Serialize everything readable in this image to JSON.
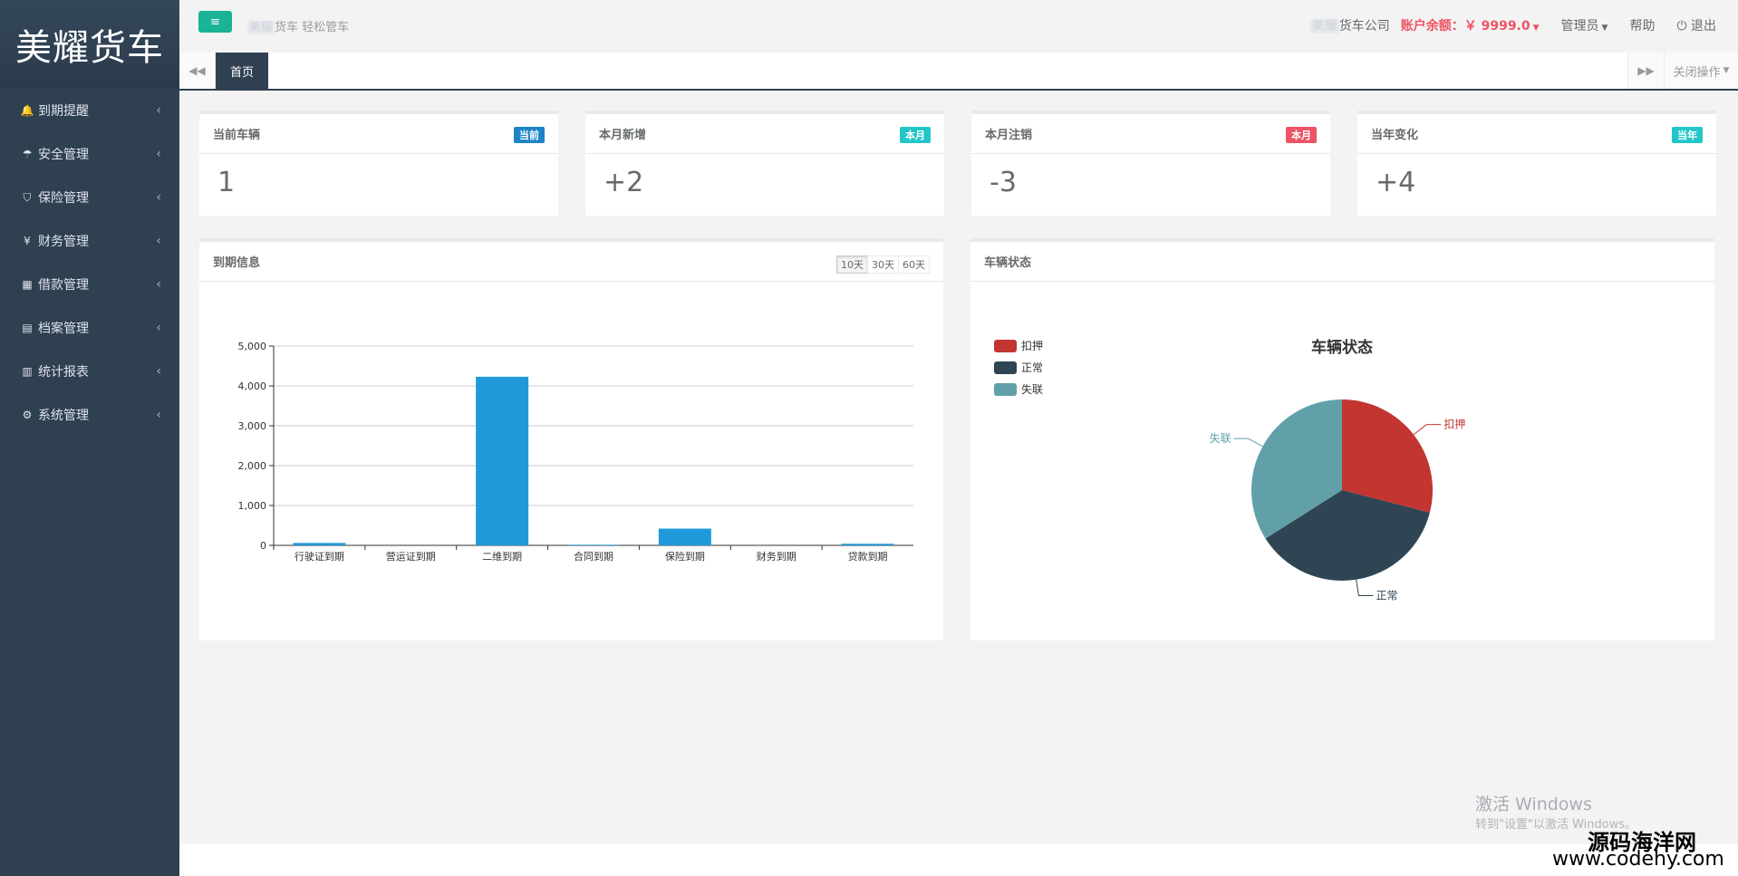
{
  "sidebar": {
    "logo": "美耀货车",
    "items": [
      {
        "icon": "bell-icon",
        "glyph": "🔔",
        "label": "到期提醒"
      },
      {
        "icon": "umbrella-icon",
        "glyph": "☂",
        "label": "安全管理"
      },
      {
        "icon": "shield-icon",
        "glyph": "⛉",
        "label": "保险管理"
      },
      {
        "icon": "yen-icon",
        "glyph": "¥",
        "label": "财务管理"
      },
      {
        "icon": "calculator-icon",
        "glyph": "▦",
        "label": "借款管理"
      },
      {
        "icon": "document-icon",
        "glyph": "▤",
        "label": "档案管理"
      },
      {
        "icon": "bar-chart-icon",
        "glyph": "▥",
        "label": "统计报表"
      },
      {
        "icon": "gear-icon",
        "glyph": "⚙",
        "label": "系统管理"
      }
    ],
    "arrow": "‹"
  },
  "header": {
    "menu_glyph": "≡",
    "slogan_blur": "美耀",
    "slogan": "货车 轻松管车",
    "company_blur": "美耀",
    "company": "货车公司",
    "balance": "账户余额：￥ 9999.0",
    "admin": "管理员",
    "help": "帮助",
    "logout_glyph": "⏻",
    "logout": "退出"
  },
  "tabs": {
    "prev_glyph": "◀◀",
    "next_glyph": "▶▶",
    "home": "首页",
    "close_ops": "关闭操作"
  },
  "stats": [
    {
      "title": "当前车辆",
      "badge": "当前",
      "badge_color": "#1c84c6",
      "value": "1"
    },
    {
      "title": "本月新增",
      "badge": "本月",
      "badge_color": "#23c6c8",
      "value": "+2"
    },
    {
      "title": "本月注销",
      "badge": "本月",
      "badge_color": "#ed5565",
      "value": "-3"
    },
    {
      "title": "当年变化",
      "badge": "当年",
      "badge_color": "#23c6c8",
      "value": "+4"
    }
  ],
  "expiry_panel": {
    "title": "到期信息",
    "ranges": [
      "10天",
      "30天",
      "60天"
    ],
    "active_range": "10天"
  },
  "status_panel": {
    "title": "车辆状态"
  },
  "chart_data": [
    {
      "type": "bar",
      "categories": [
        "行驶证到期",
        "营运证到期",
        "二维到期",
        "合同到期",
        "保险到期",
        "财务到期",
        "贷款到期"
      ],
      "values": [
        60,
        0,
        4230,
        15,
        420,
        0,
        40
      ],
      "ylim": [
        0,
        5000
      ],
      "yticks": [
        0,
        1000,
        2000,
        3000,
        4000,
        5000
      ],
      "ytick_labels": [
        "0",
        "1,000",
        "2,000",
        "3,000",
        "4,000",
        "5,000"
      ],
      "color": "#1f99d9",
      "grid": true
    },
    {
      "type": "pie",
      "title": "车辆状态",
      "labels": [
        "扣押",
        "正常",
        "失联"
      ],
      "values": [
        29,
        37,
        34
      ],
      "colors": [
        "#c23531",
        "#2f4554",
        "#61a0a8"
      ],
      "legend_placement": "top-left"
    }
  ],
  "watermark": {
    "activate": "激活 Windows",
    "activate_sub": "转到\"设置\"以激活 Windows。",
    "site_cn": "源码海洋网",
    "site_url": "www.codehy.com"
  }
}
